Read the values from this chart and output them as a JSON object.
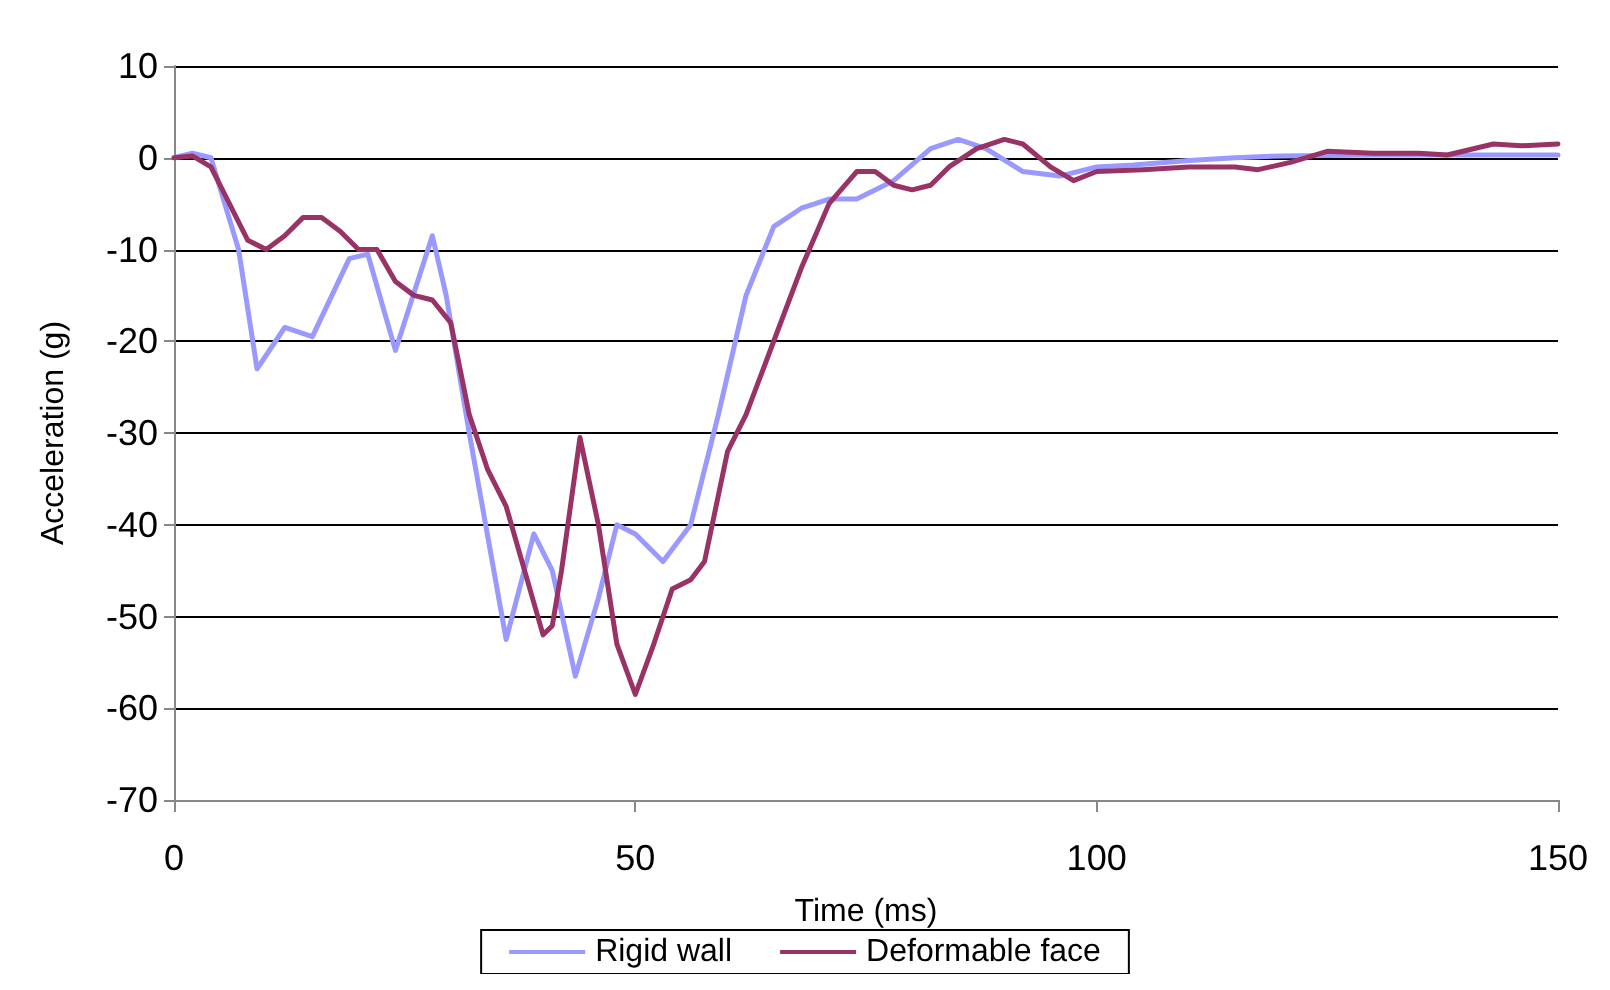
{
  "chart_data": {
    "type": "line",
    "xlabel": "Time (ms)",
    "ylabel": "Acceleration (g)",
    "xlim": [
      0,
      150
    ],
    "xticks": [
      0,
      50,
      100,
      150
    ],
    "ylim": [
      -70,
      10
    ],
    "yticks": [
      -70,
      -60,
      -50,
      -40,
      -30,
      -20,
      -10,
      0,
      10
    ],
    "grid": "y",
    "legend": "bottom",
    "marker": "none",
    "line_style": "solid",
    "series": [
      {
        "name": "Rigid wall",
        "color": "#9999ff",
        "x": [
          0,
          2,
          4,
          7,
          9,
          12,
          15,
          19,
          21,
          24,
          28,
          29.5,
          32,
          36,
          39,
          41,
          43.5,
          46,
          48,
          50,
          53,
          56,
          59,
          62,
          65,
          68,
          71,
          74,
          78,
          82,
          85,
          88,
          92,
          96,
          100,
          104,
          110,
          115,
          120,
          130,
          150
        ],
        "values": [
          0,
          0.5,
          0,
          -10,
          -23,
          -18.5,
          -19.5,
          -11,
          -10.5,
          -21,
          -8.5,
          -15,
          -30,
          -52.5,
          -41,
          -45,
          -56.5,
          -48,
          -40,
          -41,
          -44,
          -40,
          -28,
          -15,
          -7.5,
          -5.5,
          -4.5,
          -4.5,
          -2.5,
          1,
          2,
          1,
          -1.5,
          -2,
          -1,
          -0.8,
          -0.3,
          0,
          0.2,
          0.3,
          0.3
        ]
      },
      {
        "name": "Deformable face",
        "color": "#993366",
        "x": [
          0,
          2,
          4,
          6,
          8,
          10,
          12,
          14,
          16,
          18,
          20,
          22,
          24,
          26,
          28,
          30,
          32,
          34,
          36,
          38,
          40,
          41,
          42,
          44,
          46,
          48,
          50,
          52,
          54,
          56,
          57.5,
          60,
          62,
          65,
          68,
          71,
          74,
          76,
          78,
          80,
          82,
          84,
          87,
          90,
          92,
          95,
          97.5,
          100,
          105,
          110,
          115,
          117.5,
          121,
          125,
          130,
          135,
          138,
          143,
          146,
          150
        ],
        "values": [
          0,
          0.2,
          -1,
          -5,
          -9,
          -10,
          -8.5,
          -6.5,
          -6.5,
          -8,
          -10,
          -10,
          -13.5,
          -15,
          -15.5,
          -18,
          -28,
          -34,
          -38,
          -45,
          -52,
          -51,
          -45,
          -30.5,
          -40,
          -53,
          -58.5,
          -53,
          -47,
          -46,
          -44,
          -32,
          -28,
          -20,
          -12,
          -5,
          -1.5,
          -1.5,
          -3,
          -3.5,
          -3,
          -1,
          1,
          2,
          1.5,
          -1,
          -2.5,
          -1.5,
          -1.3,
          -1,
          -1,
          -1.3,
          -0.5,
          0.7,
          0.5,
          0.5,
          0.3,
          1.5,
          1.3,
          1.5
        ]
      }
    ]
  }
}
